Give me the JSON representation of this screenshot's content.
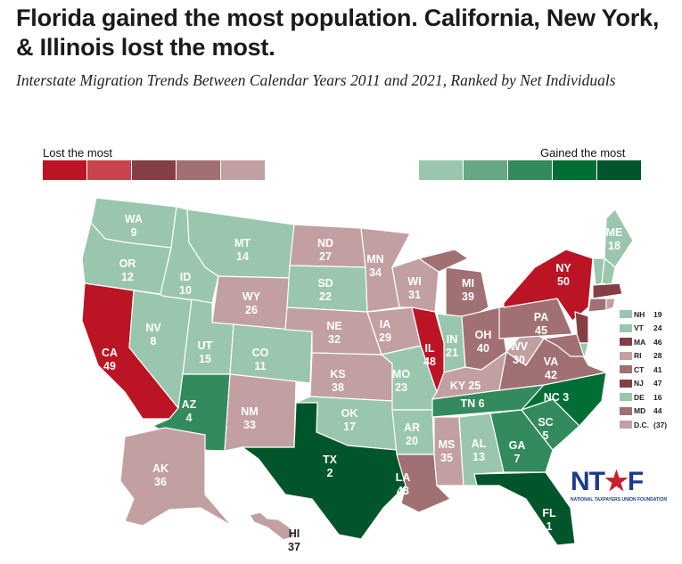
{
  "title": "Florida gained the most population. California, New York, & Illinois lost the most.",
  "subtitle": "Interstate Migration Trends Between Calendar Years 2011 and 2021, Ranked by Net Individuals",
  "legend": {
    "lost_label": "Lost the most",
    "gained_label": "Gained the most",
    "lost_colors": [
      "#bb1424",
      "#c9444e",
      "#843f45",
      "#a07072",
      "#c2a0a2"
    ],
    "gained_colors": [
      "#9ac6ae",
      "#66a884",
      "#338a5c",
      "#006e35",
      "#00552a"
    ]
  },
  "states": [
    {
      "abbr": "WA",
      "rank": 9
    },
    {
      "abbr": "OR",
      "rank": 12
    },
    {
      "abbr": "CA",
      "rank": 49
    },
    {
      "abbr": "NV",
      "rank": 8
    },
    {
      "abbr": "ID",
      "rank": 10
    },
    {
      "abbr": "MT",
      "rank": 14
    },
    {
      "abbr": "WY",
      "rank": 26
    },
    {
      "abbr": "UT",
      "rank": 15
    },
    {
      "abbr": "CO",
      "rank": 11
    },
    {
      "abbr": "AZ",
      "rank": 4
    },
    {
      "abbr": "NM",
      "rank": 33
    },
    {
      "abbr": "ND",
      "rank": 27
    },
    {
      "abbr": "SD",
      "rank": 22
    },
    {
      "abbr": "NE",
      "rank": 32
    },
    {
      "abbr": "KS",
      "rank": 38
    },
    {
      "abbr": "OK",
      "rank": 17
    },
    {
      "abbr": "TX",
      "rank": 2
    },
    {
      "abbr": "MN",
      "rank": 34
    },
    {
      "abbr": "IA",
      "rank": 29
    },
    {
      "abbr": "MO",
      "rank": 23
    },
    {
      "abbr": "AR",
      "rank": 20
    },
    {
      "abbr": "LA",
      "rank": 43
    },
    {
      "abbr": "WI",
      "rank": 31
    },
    {
      "abbr": "IL",
      "rank": 48
    },
    {
      "abbr": "MI",
      "rank": 39
    },
    {
      "abbr": "IN",
      "rank": 21
    },
    {
      "abbr": "OH",
      "rank": 40
    },
    {
      "abbr": "KY",
      "rank": 25
    },
    {
      "abbr": "TN",
      "rank": 6
    },
    {
      "abbr": "MS",
      "rank": 35
    },
    {
      "abbr": "AL",
      "rank": 13
    },
    {
      "abbr": "GA",
      "rank": 7
    },
    {
      "abbr": "FL",
      "rank": 1
    },
    {
      "abbr": "SC",
      "rank": 5
    },
    {
      "abbr": "NC",
      "rank": 3
    },
    {
      "abbr": "VA",
      "rank": 42
    },
    {
      "abbr": "WV",
      "rank": 30
    },
    {
      "abbr": "PA",
      "rank": 45
    },
    {
      "abbr": "NY",
      "rank": 50
    },
    {
      "abbr": "ME",
      "rank": 18
    },
    {
      "abbr": "AK",
      "rank": 36
    },
    {
      "abbr": "HI",
      "rank": 37
    }
  ],
  "small_states": [
    {
      "abbr": "NH",
      "rank": "19"
    },
    {
      "abbr": "VT",
      "rank": "24"
    },
    {
      "abbr": "MA",
      "rank": "46"
    },
    {
      "abbr": "RI",
      "rank": "28"
    },
    {
      "abbr": "CT",
      "rank": "41"
    },
    {
      "abbr": "NJ",
      "rank": "47"
    },
    {
      "abbr": "DE",
      "rank": "16"
    },
    {
      "abbr": "MD",
      "rank": "44"
    },
    {
      "abbr": "D.C.",
      "rank": "(37)"
    }
  ],
  "logo": {
    "mark": "NTUF",
    "name": "NATIONAL TAXPAYERS UNION FOUNDATION"
  }
}
